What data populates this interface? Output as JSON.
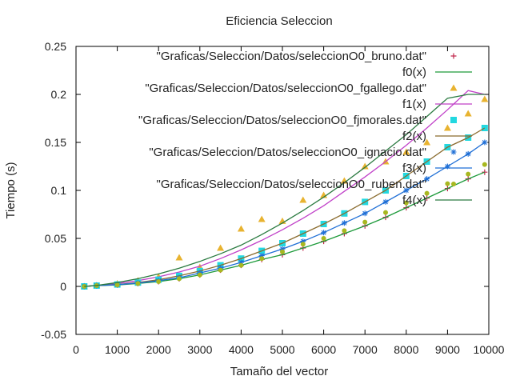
{
  "chart_data": {
    "type": "scatter",
    "title": "Eficiencia Seleccion",
    "xlabel": "Tamaño del vector",
    "ylabel": "Tiempo (s)",
    "xlim": [
      0,
      10000
    ],
    "ylim": [
      -0.05,
      0.25
    ],
    "xticks": [
      "0",
      "1000",
      "2000",
      "3000",
      "4000",
      "5000",
      "6000",
      "7000",
      "8000",
      "9000",
      "10000"
    ],
    "yticks": [
      "-0.05",
      "0",
      "0.05",
      "0.1",
      "0.15",
      "0.2",
      "0.25"
    ],
    "grid": false,
    "legend_position": "top-right",
    "x": [
      200,
      500,
      1000,
      1500,
      2000,
      2500,
      3000,
      3500,
      4000,
      4500,
      5000,
      5500,
      6000,
      6500,
      7000,
      7500,
      8000,
      8500,
      9000,
      9500,
      9900
    ],
    "series": [
      {
        "name": "\"Graficas/Seleccion/Datos/seleccionO0_bruno.dat\"",
        "kind": "points",
        "marker": "plus",
        "color": "#c0254a",
        "y": [
          0.0,
          0.0008,
          0.0015,
          0.003,
          0.005,
          0.008,
          0.012,
          0.017,
          0.022,
          0.028,
          0.033,
          0.04,
          0.047,
          0.055,
          0.063,
          0.072,
          0.082,
          0.092,
          0.102,
          0.112,
          0.119
        ]
      },
      {
        "name": "f0(x)",
        "kind": "line",
        "color": "#1d9a3a",
        "y": [
          0.0,
          0.0008,
          0.0015,
          0.003,
          0.005,
          0.008,
          0.012,
          0.017,
          0.022,
          0.028,
          0.033,
          0.04,
          0.047,
          0.055,
          0.063,
          0.072,
          0.082,
          0.092,
          0.102,
          0.112,
          0.119
        ]
      },
      {
        "name": "\"Graficas/Seleccion/Datos/seleccionO0_fgallego.dat\"",
        "kind": "points",
        "marker": "triangle",
        "color": "#e8b330",
        "y": [
          0.0,
          0.001,
          0.003,
          0.006,
          0.01,
          0.03,
          0.02,
          0.04,
          0.06,
          0.07,
          0.068,
          0.09,
          0.095,
          0.11,
          0.125,
          0.13,
          0.14,
          0.15,
          0.165,
          0.18,
          0.195
        ]
      },
      {
        "name": "f1(x)",
        "kind": "line",
        "color": "#c040c8",
        "y": [
          0.0,
          0.001,
          0.003,
          0.006,
          0.01,
          0.015,
          0.021,
          0.029,
          0.038,
          0.048,
          0.059,
          0.071,
          0.084,
          0.099,
          0.114,
          0.13,
          0.147,
          0.165,
          0.184,
          0.204,
          0.2
        ]
      },
      {
        "name": "\"Graficas/Seleccion/Datos/seleccionO0_fjmorales.dat\"",
        "kind": "points",
        "marker": "square",
        "color": "#22d8e0",
        "y": [
          0.0,
          0.0008,
          0.002,
          0.004,
          0.007,
          0.011,
          0.016,
          0.022,
          0.029,
          0.037,
          0.045,
          0.055,
          0.065,
          0.076,
          0.088,
          0.1,
          0.115,
          0.13,
          0.145,
          0.155,
          0.165
        ]
      },
      {
        "name": "f2(x)",
        "kind": "line",
        "color": "#8a6b2e",
        "y": [
          0.0,
          0.0008,
          0.002,
          0.004,
          0.007,
          0.011,
          0.016,
          0.022,
          0.029,
          0.037,
          0.045,
          0.055,
          0.065,
          0.076,
          0.088,
          0.1,
          0.115,
          0.13,
          0.145,
          0.155,
          0.165
        ]
      },
      {
        "name": "\"Graficas/Seleccion/Datos/seleccionO0_ignacio.dat\"",
        "kind": "points",
        "marker": "star",
        "color": "#1f6fd6",
        "y": [
          0.0,
          0.0008,
          0.0018,
          0.0035,
          0.006,
          0.009,
          0.014,
          0.019,
          0.025,
          0.032,
          0.039,
          0.047,
          0.056,
          0.066,
          0.076,
          0.088,
          0.1,
          0.112,
          0.125,
          0.138,
          0.15
        ]
      },
      {
        "name": "f3(x)",
        "kind": "line",
        "color": "#1f6fd6",
        "y": [
          0.0,
          0.0008,
          0.0018,
          0.0035,
          0.006,
          0.009,
          0.014,
          0.019,
          0.025,
          0.032,
          0.039,
          0.047,
          0.056,
          0.066,
          0.076,
          0.088,
          0.1,
          0.112,
          0.125,
          0.138,
          0.15
        ]
      },
      {
        "name": "\"Graficas/Seleccion/Datos/seleccionO0_ruben.dat\"",
        "kind": "points",
        "marker": "circle",
        "color": "#a8b820",
        "y": [
          0.0,
          0.0008,
          0.0016,
          0.003,
          0.005,
          0.008,
          0.012,
          0.017,
          0.022,
          0.029,
          0.036,
          0.044,
          0.05,
          0.058,
          0.067,
          0.077,
          0.087,
          0.097,
          0.107,
          0.117,
          0.127
        ]
      },
      {
        "name": "f4(x)",
        "kind": "line",
        "color": "#2a7a40",
        "y": [
          0.0,
          0.001,
          0.004,
          0.008,
          0.013,
          0.019,
          0.026,
          0.034,
          0.043,
          0.054,
          0.066,
          0.079,
          0.093,
          0.108,
          0.124,
          0.141,
          0.158,
          0.177,
          0.196,
          0.2,
          0.2
        ]
      }
    ]
  }
}
